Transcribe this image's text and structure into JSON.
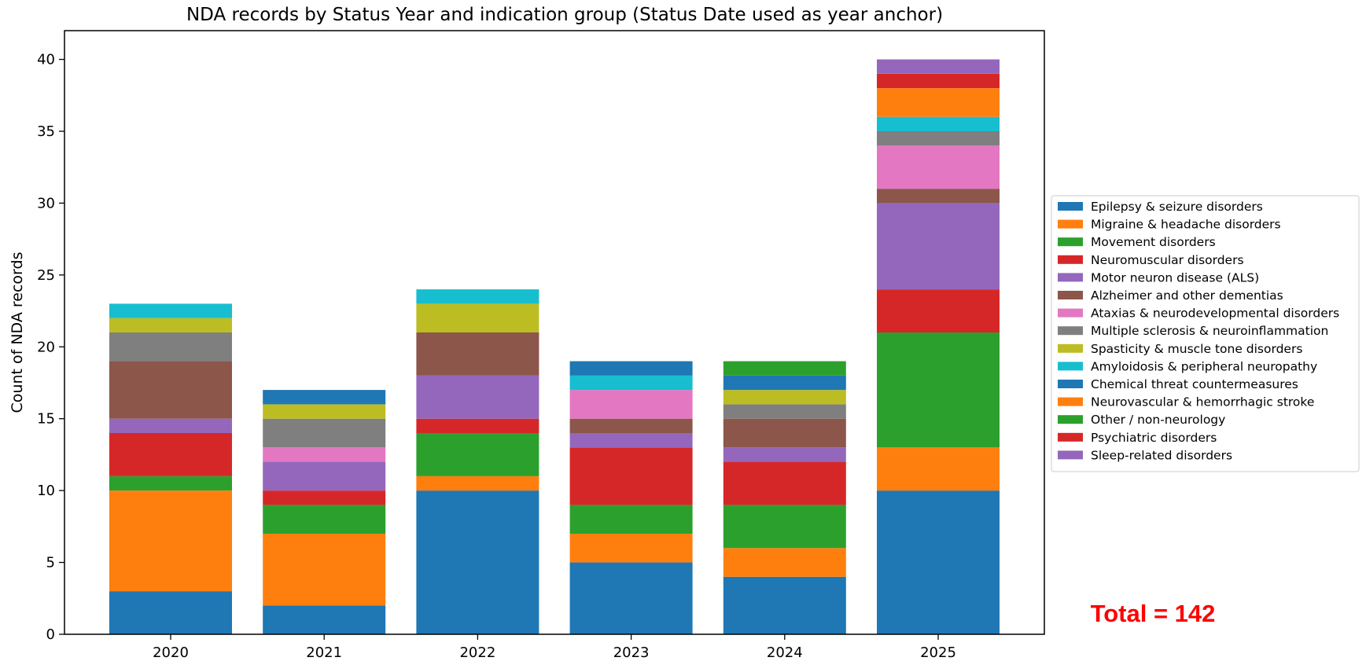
{
  "chart_data": {
    "type": "bar",
    "stacked": true,
    "title": "NDA records by Status Year and indication group (Status Date used as year anchor)",
    "xlabel": "",
    "ylabel": "Count of NDA records",
    "ylim": [
      0,
      42
    ],
    "yticks": [
      0,
      5,
      10,
      15,
      20,
      25,
      30,
      35,
      40
    ],
    "grid": false,
    "legend_position": "right",
    "categories": [
      "2020",
      "2021",
      "2022",
      "2023",
      "2024",
      "2025"
    ],
    "series": [
      {
        "name": "Epilepsy & seizure disorders",
        "color": "#1f77b4",
        "values": [
          3,
          2,
          10,
          5,
          4,
          10
        ]
      },
      {
        "name": "Migraine & headache disorders",
        "color": "#ff7f0e",
        "values": [
          7,
          5,
          1,
          2,
          2,
          3
        ]
      },
      {
        "name": "Movement disorders",
        "color": "#2ca02c",
        "values": [
          1,
          2,
          3,
          2,
          3,
          8
        ]
      },
      {
        "name": "Neuromuscular disorders",
        "color": "#d62728",
        "values": [
          3,
          1,
          1,
          4,
          3,
          3
        ]
      },
      {
        "name": "Motor neuron disease (ALS)",
        "color": "#9467bd",
        "values": [
          1,
          2,
          3,
          1,
          1,
          6
        ]
      },
      {
        "name": "Alzheimer and other dementias",
        "color": "#8c564b",
        "values": [
          4,
          0,
          3,
          1,
          2,
          1
        ]
      },
      {
        "name": "Ataxias & neurodevelopmental disorders",
        "color": "#e377c2",
        "values": [
          0,
          1,
          0,
          2,
          0,
          3
        ]
      },
      {
        "name": "Multiple sclerosis & neuroinflammation",
        "color": "#7f7f7f",
        "values": [
          2,
          2,
          0,
          0,
          1,
          1
        ]
      },
      {
        "name": "Spasticity & muscle tone disorders",
        "color": "#bcbd22",
        "values": [
          1,
          1,
          2,
          0,
          1,
          0
        ]
      },
      {
        "name": "Amyloidosis & peripheral neuropathy",
        "color": "#17becf",
        "values": [
          1,
          0,
          1,
          1,
          0,
          1
        ]
      },
      {
        "name": "Chemical threat countermeasures",
        "color": "#1f77b4",
        "values": [
          0,
          1,
          0,
          1,
          1,
          0
        ]
      },
      {
        "name": "Neurovascular & hemorrhagic stroke",
        "color": "#ff7f0e",
        "values": [
          0,
          0,
          0,
          0,
          0,
          2
        ]
      },
      {
        "name": "Other / non-neurology",
        "color": "#2ca02c",
        "values": [
          0,
          0,
          0,
          0,
          1,
          0
        ]
      },
      {
        "name": "Psychiatric disorders",
        "color": "#d62728",
        "values": [
          0,
          0,
          0,
          0,
          0,
          1
        ]
      },
      {
        "name": "Sleep-related disorders",
        "color": "#9467bd",
        "values": [
          0,
          0,
          0,
          0,
          0,
          1
        ]
      }
    ],
    "annotation": {
      "text": "Total = 142",
      "color": "#ff0000"
    }
  }
}
